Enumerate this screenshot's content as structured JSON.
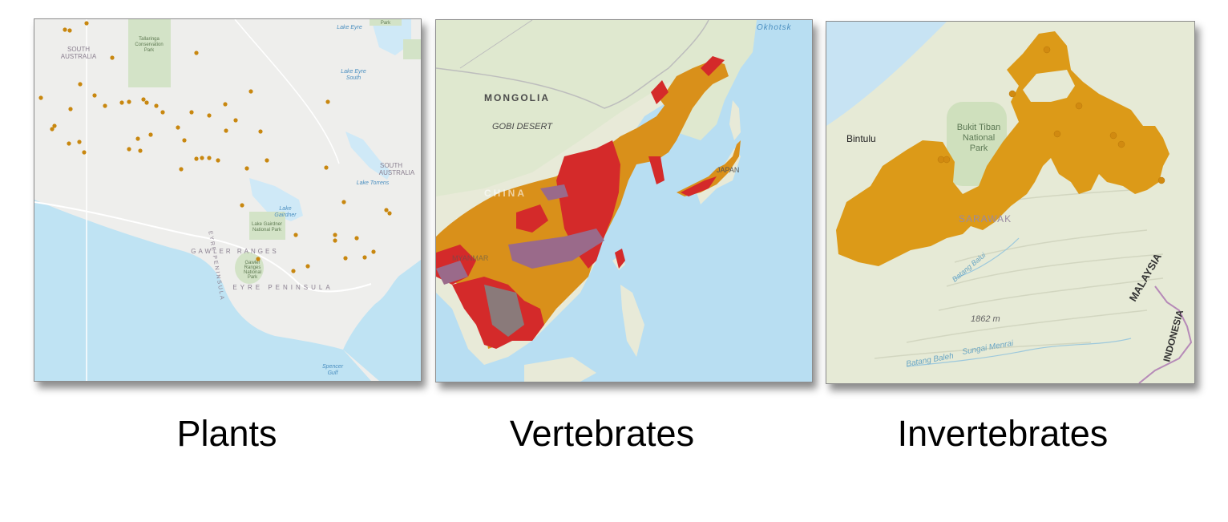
{
  "panels": [
    {
      "caption": "Plants",
      "labels": {
        "south_australia_1": "SOUTH",
        "south_australia_2": "AUSTRALIA",
        "tallaringa_1": "Tallaringa",
        "tallaringa_2": "Conservation",
        "tallaringa_3": "Park",
        "park_top": "Park",
        "lake_eyre": "Lake Eyre",
        "lake_eyre_south_1": "Lake Eyre",
        "lake_eyre_south_2": "South",
        "south_australia_r1": "SOUTH",
        "south_australia_r2": "AUSTRALIA",
        "lake_torrens": "Lake Torrens",
        "lake_gairdner_1": "Lake",
        "lake_gairdner_2": "Gairdner",
        "lake_gairdner_np_1": "Lake Gairdner",
        "lake_gairdner_np_2": "National Park",
        "gawler_ranges": "GAWLER RANGES",
        "gawler_np_1": "Gawler",
        "gawler_np_2": "Ranges",
        "gawler_np_3": "National",
        "gawler_np_4": "Park",
        "eyre_peninsula": "EYRE PENINSULA",
        "eyre_peninsula_v": "EYRE PENINSULA",
        "spencer_gulf_1": "Spencer",
        "spencer_gulf_2": "Gulf"
      },
      "occurrence_color": "#c8870f"
    },
    {
      "caption": "Vertebrates",
      "labels": {
        "okhotsk": "Okhotsk",
        "mongolia": "MONGOLIA",
        "gobi": "GOBI DESERT",
        "china": "CHINA",
        "japan": "JAPAN",
        "myanmar": "MYANMAR"
      },
      "range_colors": {
        "orange": "#d9901a",
        "red": "#d42a2a",
        "purple": "#9a6a8a"
      }
    },
    {
      "caption": "Invertebrates",
      "labels": {
        "bintulu": "Bintulu",
        "bukit_1": "Bukit Tiban",
        "bukit_2": "National",
        "bukit_3": "Park",
        "sarawak": "SARAWAK",
        "elevation": "1862 m",
        "malaysia": "MALAYSIA",
        "indonesia": "INDONESIA",
        "batang_baleh": "Batang Baleh",
        "sungai_menrai": "Sungai Menrai",
        "batang_balui": "Batang Balui"
      },
      "range_color": "#dc9a18"
    }
  ]
}
